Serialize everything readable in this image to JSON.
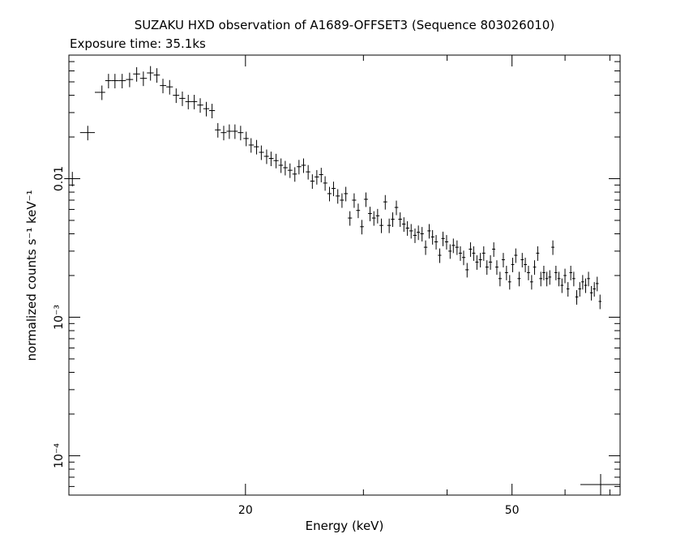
{
  "chart_data": {
    "type": "scatter",
    "title": "SUZAKU HXD observation of A1689-OFFSET3 (Sequence 803026010)",
    "subtitle": "Exposure time: 35.1ks",
    "xlabel": "Energy (keV)",
    "ylabel": "normalized counts s⁻¹ keV⁻¹",
    "x_scale": "log",
    "y_scale": "log",
    "xlim": [
      10.9,
      72.5
    ],
    "ylim": [
      5.2e-05,
      0.078
    ],
    "x_ticks": [
      {
        "value": 20,
        "label": "20"
      },
      {
        "value": 50,
        "label": "50"
      }
    ],
    "y_ticks": [
      {
        "value": 0.01,
        "label": "0.01"
      },
      {
        "value": 0.001,
        "label": "10⁻³"
      },
      {
        "value": 0.0001,
        "label": "10⁻⁴"
      }
    ],
    "grid": false,
    "series": [
      {
        "x": [
          11.03,
          11.63,
          12.21,
          12.49,
          12.77,
          13.09,
          13.43,
          13.76,
          14.08,
          14.43,
          14.75,
          15.06,
          15.41,
          15.76,
          16.1,
          16.43,
          16.77,
          17.12,
          17.48,
          17.83,
          18.19,
          18.56,
          18.92,
          19.29,
          19.67,
          20.05,
          20.39,
          20.78,
          21.12,
          21.51,
          21.84,
          22.22,
          22.6,
          22.93,
          23.31,
          23.7,
          24.04,
          24.42,
          24.81,
          25.17,
          25.56,
          25.95,
          26.3,
          26.7,
          27.07,
          27.47,
          27.87,
          28.24,
          28.64,
          29.06,
          29.47,
          29.84,
          30.26,
          30.69,
          31.1,
          31.5,
          31.91,
          32.34,
          32.78,
          33.18,
          33.6,
          34.04,
          34.48,
          34.9,
          35.35,
          35.82,
          36.24,
          36.7,
          37.15,
          37.61,
          38.05,
          38.52,
          39.0,
          39.44,
          39.93,
          40.42,
          40.87,
          41.39,
          41.87,
          42.34,
          42.85,
          43.35,
          43.83,
          44.32,
          44.85,
          45.37,
          45.87,
          46.43,
          46.96,
          47.46,
          47.98,
          48.53,
          49.06,
          49.6,
          50.11,
          50.65,
          51.24,
          51.79,
          52.34,
          52.91,
          53.49,
          54.03,
          54.62,
          55.21,
          55.78,
          56.36,
          56.93,
          57.54,
          58.15,
          58.75,
          59.37,
          59.99,
          60.61,
          61.19,
          61.83,
          62.46,
          63.12,
          63.75,
          64.4,
          65.04,
          65.69,
          66.35,
          67.01,
          67.67
        ],
        "y": [
          0.01,
          0.0215,
          0.042,
          0.051,
          0.051,
          0.051,
          0.052,
          0.057,
          0.053,
          0.058,
          0.056,
          0.047,
          0.046,
          0.04,
          0.038,
          0.036,
          0.036,
          0.034,
          0.032,
          0.031,
          0.0225,
          0.0215,
          0.022,
          0.022,
          0.0215,
          0.0195,
          0.0175,
          0.017,
          0.0155,
          0.0145,
          0.014,
          0.0135,
          0.0125,
          0.012,
          0.0115,
          0.0108,
          0.0122,
          0.0125,
          0.0112,
          0.0096,
          0.0103,
          0.0107,
          0.0093,
          0.0078,
          0.0085,
          0.0075,
          0.007,
          0.0078,
          0.0052,
          0.007,
          0.0059,
          0.0045,
          0.0071,
          0.0056,
          0.0052,
          0.0054,
          0.0046,
          0.0068,
          0.0046,
          0.0051,
          0.0062,
          0.0051,
          0.0047,
          0.0044,
          0.0042,
          0.0039,
          0.0041,
          0.004,
          0.0032,
          0.0042,
          0.0038,
          0.0035,
          0.0028,
          0.0037,
          0.0035,
          0.003,
          0.0033,
          0.0032,
          0.0029,
          0.0027,
          0.0022,
          0.0031,
          0.0029,
          0.0025,
          0.0026,
          0.0029,
          0.0023,
          0.0025,
          0.0031,
          0.0023,
          0.0019,
          0.0026,
          0.0021,
          0.0018,
          0.0024,
          0.0028,
          0.0019,
          0.0026,
          0.0024,
          0.0021,
          0.0018,
          0.0023,
          0.0029,
          0.0019,
          0.0021,
          0.0019,
          0.00195,
          0.0032,
          0.0021,
          0.0019,
          0.0017,
          0.002,
          0.0016,
          0.0021,
          0.0019,
          0.0014,
          0.0016,
          0.0018,
          0.0017,
          0.0019,
          0.0015,
          0.0016,
          0.00175,
          0.0013
        ],
        "y_err_rel": 0.12
      }
    ]
  },
  "colors": {
    "ink": "#000000",
    "background": "#ffffff"
  }
}
